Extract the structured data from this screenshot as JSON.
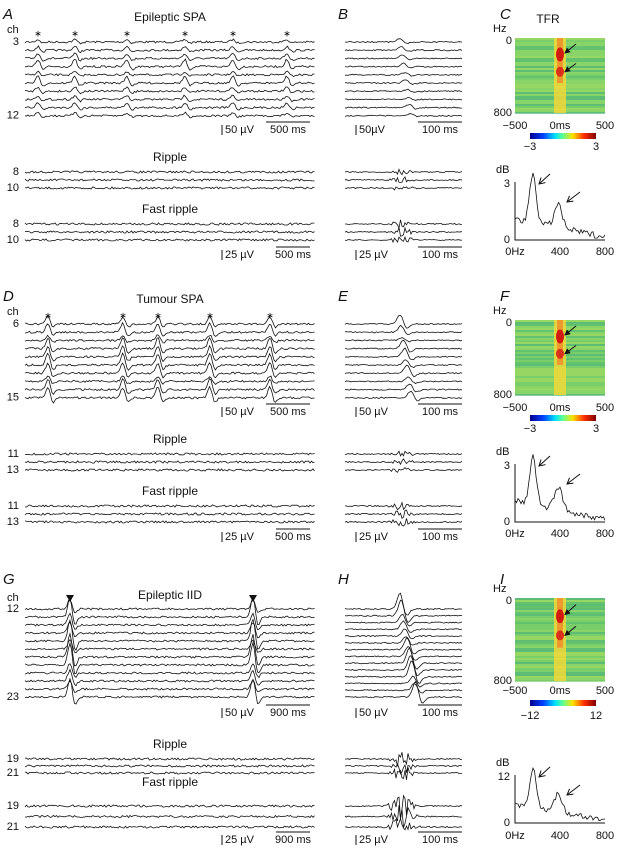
{
  "rows": [
    {
      "trace_panel": {
        "label": "A",
        "title": "Epileptic SPA",
        "ch": "ch",
        "first_channel": "3",
        "last_channel": "12",
        "scale_uv": "50 µV",
        "scale_ms": "500 ms",
        "ripple": {
          "title": "Ripple",
          "channels": [
            "8",
            "10"
          ]
        },
        "fast_ripple": {
          "title": "Fast ripple",
          "channels": [
            "8",
            "10"
          ],
          "scale_uv": "25 µV",
          "scale_ms": "500 ms"
        }
      },
      "zoom_panel": {
        "label": "B",
        "scale_uv": "50µV",
        "scale_ms": "100 ms",
        "scale_uv_2": "25 µV",
        "scale_ms_2": "100 ms"
      },
      "tfr_panel": {
        "label": "C",
        "title": "TFR",
        "y_unit": "Hz",
        "y_top": "0",
        "y_bottom": "800",
        "x_left": "−500",
        "x_mid": "0ms",
        "x_right": "500",
        "cbar_min": "−3",
        "cbar_max": "3",
        "spec_unit": "dB",
        "spec_ytop": "3",
        "spec_y0": "0",
        "spec_x0": "0Hz",
        "spec_xmid": "400",
        "spec_xmax": "800"
      }
    },
    {
      "trace_panel": {
        "label": "D",
        "title": "Tumour SPA",
        "ch": "ch",
        "first_channel": "6",
        "last_channel": "15",
        "scale_uv": "50 µV",
        "scale_ms": "500 ms",
        "ripple": {
          "title": "Ripple",
          "channels": [
            "11",
            "13"
          ]
        },
        "fast_ripple": {
          "title": "Fast ripple",
          "channels": [
            "11",
            "13"
          ],
          "scale_uv": "25 µV",
          "scale_ms": "500 ms"
        }
      },
      "zoom_panel": {
        "label": "E",
        "scale_uv": "50 µV",
        "scale_ms": "100 ms",
        "scale_uv_2": "25 µV",
        "scale_ms_2": "100 ms"
      },
      "tfr_panel": {
        "label": "F",
        "y_unit": "Hz",
        "y_top": "0",
        "y_bottom": "800",
        "x_left": "−500",
        "x_mid": "0ms",
        "x_right": "500",
        "cbar_min": "−3",
        "cbar_max": "3",
        "spec_unit": "dB",
        "spec_ytop": "3",
        "spec_y0": "0",
        "spec_x0": "0Hz",
        "spec_xmid": "400",
        "spec_xmax": "800"
      }
    },
    {
      "trace_panel": {
        "label": "G",
        "title": "Epileptic IID",
        "ch": "ch",
        "first_channel": "12",
        "last_channel": "23",
        "scale_uv": "50 µV",
        "scale_ms": "900 ms",
        "ripple": {
          "title": "Ripple",
          "channels": [
            "19",
            "21"
          ]
        },
        "fast_ripple": {
          "title": "Fast ripple",
          "channels": [
            "19",
            "21"
          ],
          "scale_uv": "25 µV",
          "scale_ms": "900 ms"
        }
      },
      "zoom_panel": {
        "label": "H",
        "scale_uv": "50 µV",
        "scale_ms": "100 ms",
        "scale_uv_2": "25 µV",
        "scale_ms_2": "100 ms"
      },
      "tfr_panel": {
        "label": "I",
        "y_unit": "Hz",
        "y_top": "0",
        "y_bottom": "800",
        "x_left": "−500",
        "x_mid": "0ms",
        "x_right": "500",
        "cbar_min": "−12",
        "cbar_max": "12",
        "spec_unit": "dB",
        "spec_ytop": "12",
        "spec_y0": "0",
        "spec_x0": "0Hz",
        "spec_xmid": "400",
        "spec_xmax": "800"
      }
    }
  ]
}
